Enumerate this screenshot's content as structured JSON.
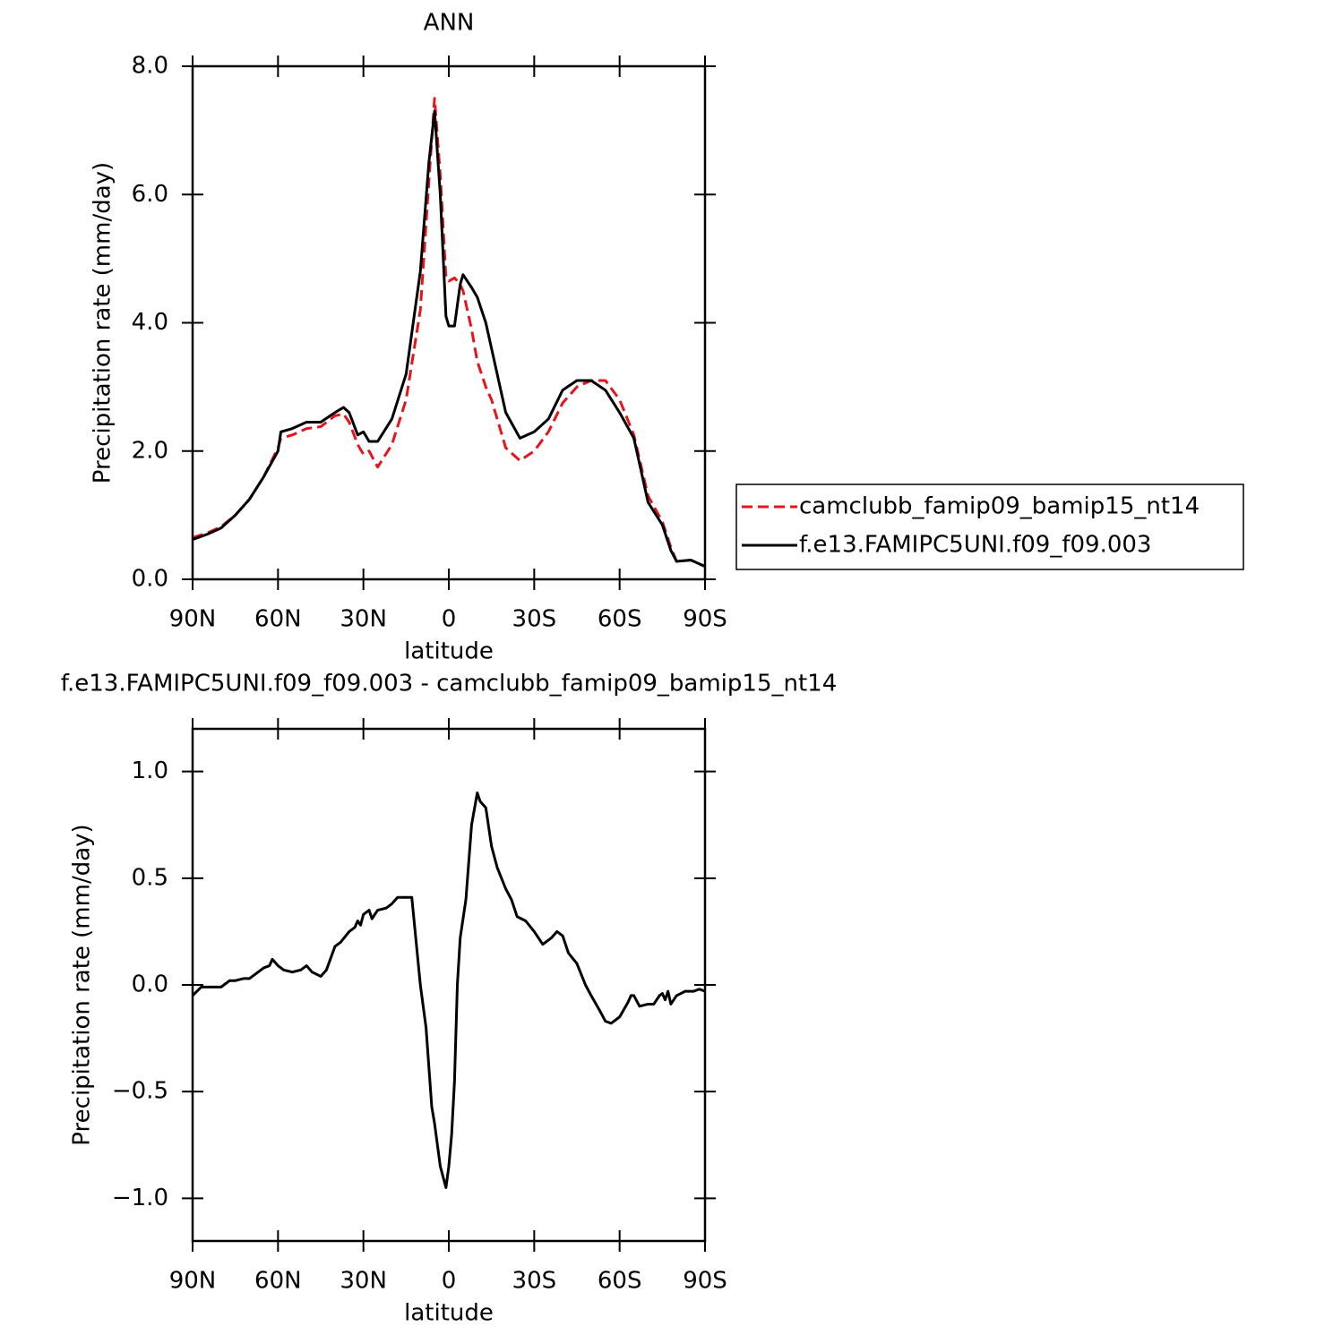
{
  "chart_data": [
    {
      "type": "line",
      "title": "ANN",
      "xlabel": "latitude",
      "ylabel": "Precipitation rate (mm/day)",
      "x": [
        90,
        85,
        80,
        75,
        70,
        65,
        60,
        59,
        55,
        50,
        45,
        40,
        37,
        35,
        32,
        30,
        28,
        25,
        20,
        15,
        10,
        7,
        5,
        3,
        1,
        0,
        -2,
        -4,
        -5,
        -8,
        -10,
        -13,
        -15,
        -20,
        -25,
        -30,
        -35,
        -40,
        -45,
        -50,
        -55,
        -60,
        -65,
        -70,
        -75,
        -78,
        -80,
        -85,
        -90
      ],
      "series": [
        {
          "name": "camclubb_famip09_bamip15_nt14",
          "color": "#e8141c",
          "line_style": "dashed",
          "values": [
            0.65,
            0.72,
            0.82,
            1.0,
            1.25,
            1.6,
            2.05,
            2.2,
            2.25,
            2.35,
            2.38,
            2.55,
            2.58,
            2.45,
            2.1,
            1.95,
            2.0,
            1.75,
            2.1,
            2.8,
            4.2,
            6.2,
            7.5,
            6.3,
            4.7,
            4.65,
            4.7,
            4.6,
            4.5,
            3.9,
            3.4,
            3.0,
            2.8,
            2.05,
            1.85,
            2.0,
            2.3,
            2.75,
            3.0,
            3.1,
            3.1,
            2.8,
            2.25,
            1.3,
            0.9,
            0.5,
            0.28,
            0.3,
            0.2
          ]
        },
        {
          "name": "f.e13.FAMIPC5UNI.f09_f09.003",
          "color": "#000000",
          "line_style": "solid",
          "values": [
            0.62,
            0.7,
            0.8,
            1.0,
            1.25,
            1.6,
            2.0,
            2.3,
            2.35,
            2.45,
            2.45,
            2.6,
            2.68,
            2.6,
            2.25,
            2.3,
            2.15,
            2.15,
            2.5,
            3.2,
            4.8,
            6.5,
            7.3,
            6.0,
            4.1,
            3.95,
            3.95,
            4.6,
            4.75,
            4.55,
            4.4,
            4.0,
            3.6,
            2.6,
            2.2,
            2.3,
            2.5,
            2.95,
            3.1,
            3.1,
            2.95,
            2.6,
            2.2,
            1.2,
            0.85,
            0.45,
            0.28,
            0.3,
            0.2
          ]
        }
      ],
      "xlim": [
        90,
        -90
      ],
      "xticks": [
        {
          "value": 90,
          "label": "90N"
        },
        {
          "value": 60,
          "label": "60N"
        },
        {
          "value": 30,
          "label": "30N"
        },
        0,
        {
          "value": -30,
          "label": "30S"
        },
        {
          "value": -60,
          "label": "60S"
        },
        {
          "value": -90,
          "label": "90S"
        }
      ],
      "ylim": [
        0,
        8
      ],
      "yticks": [
        {
          "value": 0,
          "label": "0.0"
        },
        {
          "value": 2,
          "label": "2.0"
        },
        {
          "value": 4,
          "label": "4.0"
        },
        {
          "value": 6,
          "label": "6.0"
        },
        {
          "value": 8,
          "label": "8.0"
        }
      ],
      "legend": "outside right",
      "grid": false
    },
    {
      "type": "line",
      "title": "f.e13.FAMIPC5UNI.f09_f09.003 - camclubb_famip09_bamip15_nt14",
      "xlabel": "latitude",
      "ylabel": "Precipitation rate (mm/day)",
      "x": [
        90,
        87,
        85,
        80,
        77,
        75,
        72,
        70,
        67,
        65,
        63,
        62,
        60,
        58,
        55,
        52,
        50,
        48,
        45,
        43,
        40,
        38,
        35,
        33,
        32,
        31,
        30,
        28,
        27,
        25,
        22,
        20,
        18,
        15,
        13,
        10,
        8,
        6,
        5,
        3,
        1,
        0,
        -1,
        -2,
        -3,
        -4,
        -6,
        -8,
        -10,
        -11,
        -13,
        -15,
        -17,
        -20,
        -22,
        -24,
        -27,
        -30,
        -33,
        -36,
        -38,
        -40,
        -42,
        -45,
        -48,
        -50,
        -53,
        -55,
        -57,
        -60,
        -63,
        -64,
        -65,
        -67,
        -70,
        -72,
        -74,
        -75,
        -76,
        -77,
        -78,
        -80,
        -83,
        -86,
        -88,
        -90
      ],
      "values": [
        -0.05,
        -0.01,
        -0.01,
        -0.01,
        0.02,
        0.02,
        0.03,
        0.03,
        0.06,
        0.08,
        0.09,
        0.12,
        0.09,
        0.07,
        0.06,
        0.07,
        0.09,
        0.06,
        0.04,
        0.07,
        0.18,
        0.2,
        0.25,
        0.27,
        0.3,
        0.28,
        0.33,
        0.35,
        0.31,
        0.35,
        0.36,
        0.38,
        0.41,
        0.41,
        0.41,
        0.0,
        -0.2,
        -0.57,
        -0.65,
        -0.85,
        -0.95,
        -0.85,
        -0.7,
        -0.45,
        0.0,
        0.22,
        0.4,
        0.75,
        0.9,
        0.86,
        0.83,
        0.65,
        0.55,
        0.45,
        0.4,
        0.32,
        0.3,
        0.25,
        0.19,
        0.22,
        0.25,
        0.23,
        0.15,
        0.1,
        0.0,
        -0.05,
        -0.12,
        -0.17,
        -0.18,
        -0.15,
        -0.08,
        -0.05,
        -0.05,
        -0.1,
        -0.09,
        -0.09,
        -0.05,
        -0.04,
        -0.07,
        -0.03,
        -0.09,
        -0.05,
        -0.03,
        -0.03,
        -0.02,
        -0.03
      ],
      "color": "#000000",
      "xlim": [
        90,
        -90
      ],
      "xticks": [
        {
          "value": 90,
          "label": "90N"
        },
        {
          "value": 60,
          "label": "60N"
        },
        {
          "value": 30,
          "label": "30N"
        },
        0,
        {
          "value": -30,
          "label": "30S"
        },
        {
          "value": -60,
          "label": "60S"
        },
        {
          "value": -90,
          "label": "90S"
        }
      ],
      "ylim": [
        -1.2,
        1.2
      ],
      "yticks": [
        {
          "value": -1,
          "label": "−1.0"
        },
        {
          "value": -0.5,
          "label": "−0.5"
        },
        {
          "value": 0,
          "label": "0.0"
        },
        {
          "value": 0.5,
          "label": "0.5"
        },
        {
          "value": 1,
          "label": "1.0"
        }
      ],
      "grid": false
    }
  ]
}
